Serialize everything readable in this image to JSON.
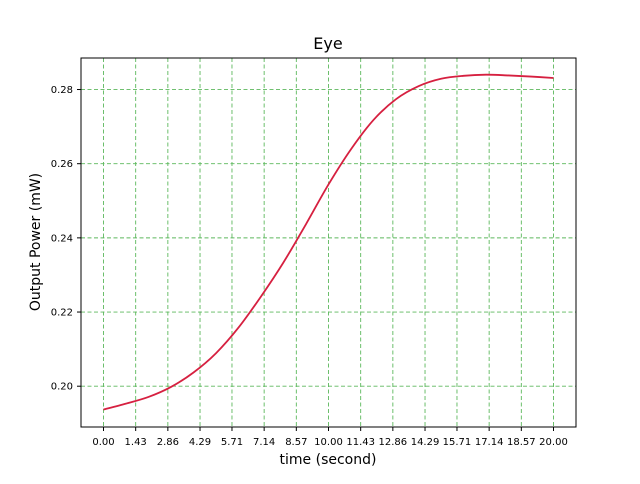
{
  "chart_data": {
    "type": "line",
    "title": "Eye",
    "xlabel": "time (second)",
    "ylabel": "Output Power (mW)",
    "xlim": [
      -1.0,
      21.0
    ],
    "ylim": [
      0.189,
      0.2885
    ],
    "grid": true,
    "legend": "none",
    "xticks": [
      0.0,
      1.43,
      2.86,
      4.29,
      5.71,
      7.14,
      8.57,
      10.0,
      11.43,
      12.86,
      14.29,
      15.71,
      17.14,
      18.57,
      20.0
    ],
    "xtick_labels": [
      "0.00",
      "1.43",
      "2.86",
      "4.29",
      "5.71",
      "7.14",
      "8.57",
      "10.00",
      "11.43",
      "12.86",
      "14.29",
      "15.71",
      "17.14",
      "18.57",
      "20.00"
    ],
    "yticks": [
      0.2,
      0.22,
      0.24,
      0.26,
      0.28
    ],
    "ytick_labels": [
      "0.20",
      "0.22",
      "0.24",
      "0.26",
      "0.28"
    ],
    "series": [
      {
        "color": "#d62040",
        "x": [
          0.0,
          1.0,
          2.0,
          3.0,
          4.0,
          5.0,
          6.0,
          7.0,
          8.0,
          9.0,
          10.0,
          11.0,
          12.0,
          13.0,
          14.0,
          15.0,
          16.0,
          17.0,
          18.0,
          19.0,
          20.0
        ],
        "y": [
          0.1937,
          0.1953,
          0.1971,
          0.1998,
          0.2037,
          0.2089,
          0.2158,
          0.2242,
          0.2334,
          0.2437,
          0.2544,
          0.2639,
          0.2718,
          0.2774,
          0.2809,
          0.2829,
          0.2837,
          0.284,
          0.2838,
          0.2835,
          0.2831
        ]
      }
    ]
  },
  "colors": {
    "grid": "#5cb85c",
    "axes": "#000000",
    "background": "#ffffff"
  }
}
